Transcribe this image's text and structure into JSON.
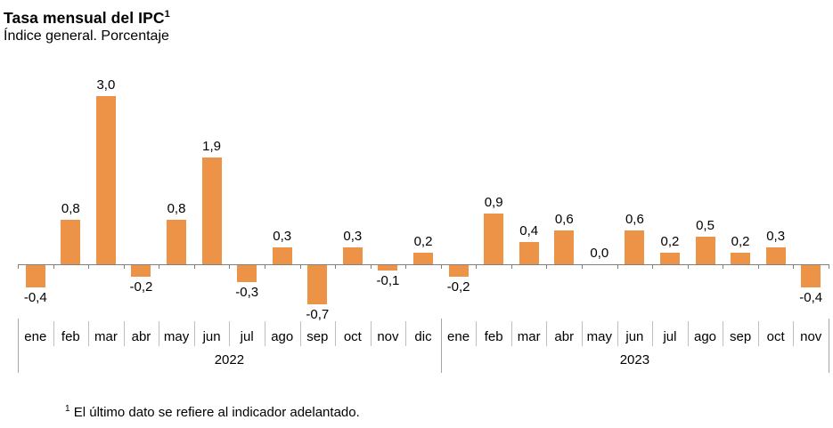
{
  "header": {
    "title": "Tasa mensual del IPC",
    "title_superscript": "1",
    "subtitle": "Índice general. Porcentaje"
  },
  "footnote": {
    "marker": "1",
    "text": "El último dato se refiere al indicador adelantado."
  },
  "chart_data": {
    "type": "bar",
    "title": "Tasa mensual del IPC¹",
    "subtitle": "Índice general. Porcentaje",
    "xlabel": "",
    "ylabel": "",
    "ylim": [
      -0.9,
      3.3
    ],
    "grid": false,
    "legend": false,
    "decimal_separator": ",",
    "colors": {
      "bar": "#ED9347",
      "axis": "#808080",
      "month_separator": "#BFBFBF",
      "group_separator": "#A6A6A6",
      "label_text": "#000000"
    },
    "groups": [
      {
        "year": "2022",
        "categories": [
          "ene",
          "feb",
          "mar",
          "abr",
          "may",
          "jun",
          "jul",
          "ago",
          "sep",
          "oct",
          "nov",
          "dic"
        ],
        "values": [
          -0.4,
          0.8,
          3.0,
          -0.2,
          0.8,
          1.9,
          -0.3,
          0.3,
          -0.7,
          0.3,
          -0.1,
          0.2
        ],
        "labels": [
          "-0,4",
          "0,8",
          "3,0",
          "-0,2",
          "0,8",
          "1,9",
          "-0,3",
          "0,3",
          "-0,7",
          "0,3",
          "-0,1",
          "0,2"
        ]
      },
      {
        "year": "2023",
        "categories": [
          "ene",
          "feb",
          "mar",
          "abr",
          "may",
          "jun",
          "jul",
          "ago",
          "sep",
          "oct",
          "nov"
        ],
        "values": [
          -0.2,
          0.9,
          0.4,
          0.6,
          0.0,
          0.6,
          0.2,
          0.5,
          0.2,
          0.3,
          -0.4
        ],
        "labels": [
          "-0,2",
          "0,9",
          "0,4",
          "0,6",
          "0,0",
          "0,6",
          "0,2",
          "0,5",
          "0,2",
          "0,3",
          "-0,4"
        ]
      }
    ]
  }
}
